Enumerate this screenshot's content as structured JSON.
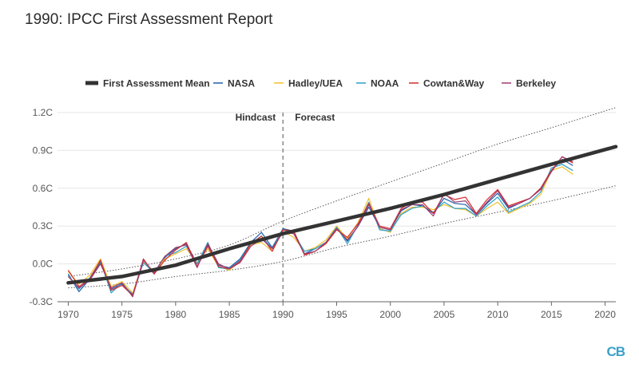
{
  "title": "1990: IPCC First Assessment Report",
  "logo": "CB",
  "colors": {
    "mean": "#333333",
    "NASA": "#1f5fa8",
    "Hadley/UEA": "#f2c12e",
    "NOAA": "#2b9fc8",
    "Cowtan&Way": "#d62a2a",
    "Berkeley": "#a03a6e",
    "envelope": "#555555",
    "divider": "#888888"
  },
  "chart_data": {
    "type": "line",
    "annotations": [
      "Hindcast",
      "Forecast"
    ],
    "divider_x": 1990,
    "xlim": [
      1969,
      2021
    ],
    "ylim": [
      -0.3,
      1.2
    ],
    "x_ticks": [
      1970,
      1975,
      1980,
      1985,
      1990,
      1995,
      2000,
      2005,
      2010,
      2015,
      2020
    ],
    "y_ticks": [
      -0.3,
      0.0,
      0.3,
      0.6,
      0.9,
      1.2
    ],
    "y_tick_labels": [
      "-0.3C",
      "0.0C",
      "0.3C",
      "0.6C",
      "0.9C",
      "1.2C"
    ],
    "grid": true,
    "legend": "top",
    "years": [
      1970,
      1971,
      1972,
      1973,
      1974,
      1975,
      1976,
      1977,
      1978,
      1979,
      1980,
      1981,
      1982,
      1983,
      1984,
      1985,
      1986,
      1987,
      1988,
      1989,
      1990,
      1991,
      1992,
      1993,
      1994,
      1995,
      1996,
      1997,
      1998,
      1999,
      2000,
      2001,
      2002,
      2003,
      2004,
      2005,
      2006,
      2007,
      2008,
      2009,
      2010,
      2011,
      2012,
      2013,
      2014,
      2015,
      2016,
      2017
    ],
    "series": [
      {
        "name": "First Assessment Mean",
        "x": [
          1970,
          1975,
          1980,
          1985,
          1990,
          1995,
          2000,
          2005,
          2010,
          2015,
          2021
        ],
        "values": [
          -0.15,
          -0.1,
          -0.01,
          0.12,
          0.24,
          0.34,
          0.44,
          0.55,
          0.67,
          0.79,
          0.93
        ]
      },
      {
        "name": "NASA",
        "values": [
          -0.08,
          -0.22,
          -0.12,
          0.01,
          -0.2,
          -0.16,
          -0.24,
          0.02,
          -0.08,
          0.05,
          0.12,
          0.16,
          0.0,
          0.15,
          -0.01,
          -0.03,
          0.04,
          0.17,
          0.25,
          0.13,
          0.28,
          0.26,
          0.08,
          0.12,
          0.17,
          0.29,
          0.18,
          0.3,
          0.45,
          0.29,
          0.27,
          0.42,
          0.47,
          0.46,
          0.4,
          0.52,
          0.48,
          0.47,
          0.39,
          0.48,
          0.56,
          0.44,
          0.48,
          0.52,
          0.6,
          0.74,
          0.83,
          0.78
        ]
      },
      {
        "name": "Hadley/UEA",
        "values": [
          -0.06,
          -0.16,
          -0.09,
          0.04,
          -0.18,
          -0.14,
          -0.23,
          0.02,
          -0.06,
          0.04,
          0.08,
          0.12,
          0.01,
          0.12,
          -0.02,
          -0.05,
          0.02,
          0.15,
          0.17,
          0.1,
          0.26,
          0.21,
          0.1,
          0.13,
          0.19,
          0.3,
          0.2,
          0.33,
          0.52,
          0.28,
          0.25,
          0.4,
          0.45,
          0.45,
          0.43,
          0.47,
          0.44,
          0.43,
          0.38,
          0.44,
          0.49,
          0.4,
          0.44,
          0.48,
          0.55,
          0.74,
          0.77,
          0.71
        ]
      },
      {
        "name": "NOAA",
        "values": [
          -0.09,
          -0.2,
          -0.11,
          0.02,
          -0.23,
          -0.15,
          -0.25,
          0.01,
          -0.07,
          0.06,
          0.09,
          0.14,
          0.0,
          0.17,
          -0.03,
          -0.04,
          0.03,
          0.16,
          0.22,
          0.12,
          0.27,
          0.24,
          0.1,
          0.12,
          0.17,
          0.29,
          0.16,
          0.31,
          0.49,
          0.27,
          0.26,
          0.39,
          0.44,
          0.46,
          0.41,
          0.49,
          0.44,
          0.44,
          0.38,
          0.46,
          0.53,
          0.41,
          0.45,
          0.49,
          0.57,
          0.76,
          0.79,
          0.74
        ]
      },
      {
        "name": "Cowtan&Way",
        "values": [
          -0.05,
          -0.18,
          -0.12,
          0.03,
          -0.21,
          -0.17,
          -0.25,
          0.04,
          -0.08,
          0.03,
          0.11,
          0.17,
          -0.02,
          0.14,
          -0.02,
          -0.04,
          0.02,
          0.16,
          0.22,
          0.1,
          0.27,
          0.26,
          0.07,
          0.1,
          0.16,
          0.27,
          0.21,
          0.32,
          0.48,
          0.3,
          0.28,
          0.44,
          0.49,
          0.49,
          0.4,
          0.55,
          0.51,
          0.53,
          0.4,
          0.51,
          0.59,
          0.46,
          0.49,
          0.52,
          0.6,
          0.74,
          0.85,
          0.8
        ]
      },
      {
        "name": "Berkeley",
        "values": [
          -0.1,
          -0.19,
          -0.13,
          0.0,
          -0.19,
          -0.15,
          -0.26,
          0.03,
          -0.07,
          0.06,
          0.13,
          0.15,
          -0.03,
          0.16,
          0.0,
          -0.04,
          0.01,
          0.14,
          0.2,
          0.12,
          0.25,
          0.24,
          0.08,
          0.1,
          0.17,
          0.28,
          0.19,
          0.3,
          0.47,
          0.29,
          0.27,
          0.43,
          0.47,
          0.47,
          0.38,
          0.56,
          0.49,
          0.5,
          0.39,
          0.49,
          0.58,
          0.45,
          0.48,
          0.52,
          0.59,
          0.73,
          0.85,
          0.81
        ]
      }
    ],
    "envelope_upper": {
      "x": [
        1970,
        1975,
        1980,
        1985,
        1990,
        1995,
        2000,
        2005,
        2010,
        2015,
        2021
      ],
      "values": [
        -0.1,
        -0.04,
        0.04,
        0.15,
        0.34,
        0.5,
        0.65,
        0.8,
        0.95,
        1.08,
        1.24
      ]
    },
    "envelope_lower": {
      "x": [
        1970,
        1975,
        1980,
        1985,
        1990,
        1995,
        2000,
        2005,
        2010,
        2015,
        2021
      ],
      "values": [
        -0.19,
        -0.16,
        -0.1,
        -0.05,
        0.02,
        0.13,
        0.22,
        0.32,
        0.41,
        0.5,
        0.62
      ]
    }
  }
}
